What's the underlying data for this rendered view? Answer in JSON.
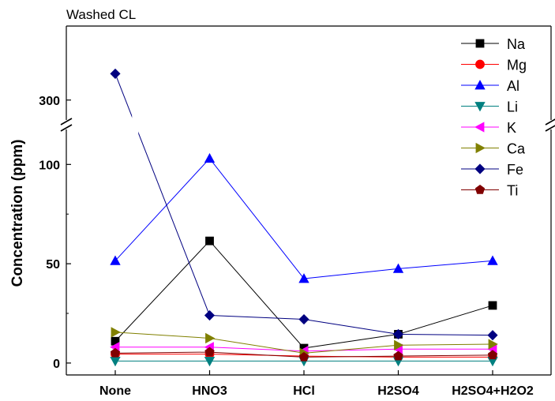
{
  "chart_data": {
    "type": "line",
    "title": "Washed CL",
    "xlabel": "",
    "ylabel": "Concentration (ppm)",
    "categories": [
      "None",
      "HNO3",
      "HCl",
      "H2SO4",
      "H2SO4+H2O2"
    ],
    "y_axis_break": true,
    "ylim_lower": [
      -6,
      120
    ],
    "ylim_upper": [
      285,
      345
    ],
    "yticks_lower": [
      0,
      50,
      100
    ],
    "yticks_upper": [
      300
    ],
    "grid": false,
    "legend_position": "top-right",
    "series": [
      {
        "name": "Na",
        "marker": "square",
        "color": "#000000",
        "values": [
          11,
          61.5,
          7.5,
          14.5,
          29
        ]
      },
      {
        "name": "Mg",
        "marker": "circle",
        "color": "#ff0000",
        "values": [
          4.5,
          4.5,
          3.5,
          3,
          3
        ]
      },
      {
        "name": "Al",
        "marker": "triangle-up",
        "color": "#0000ff",
        "values": [
          51.5,
          103,
          42.5,
          47.5,
          51.5
        ]
      },
      {
        "name": "Li",
        "marker": "triangle-down",
        "color": "#008080",
        "values": [
          1,
          1,
          1,
          1,
          1
        ]
      },
      {
        "name": "K",
        "marker": "triangle-left",
        "color": "#ff00ff",
        "values": [
          8,
          8,
          6,
          7,
          7
        ]
      },
      {
        "name": "Ca",
        "marker": "triangle-right",
        "color": "#808000",
        "values": [
          15.5,
          12.5,
          5,
          9,
          9.5
        ]
      },
      {
        "name": "Fe",
        "marker": "diamond",
        "color": "#000080",
        "values": [
          316,
          24,
          22,
          14.5,
          14
        ]
      },
      {
        "name": "Ti",
        "marker": "pentagon",
        "color": "#800000",
        "values": [
          5,
          5.5,
          3,
          3.5,
          4
        ]
      }
    ]
  }
}
